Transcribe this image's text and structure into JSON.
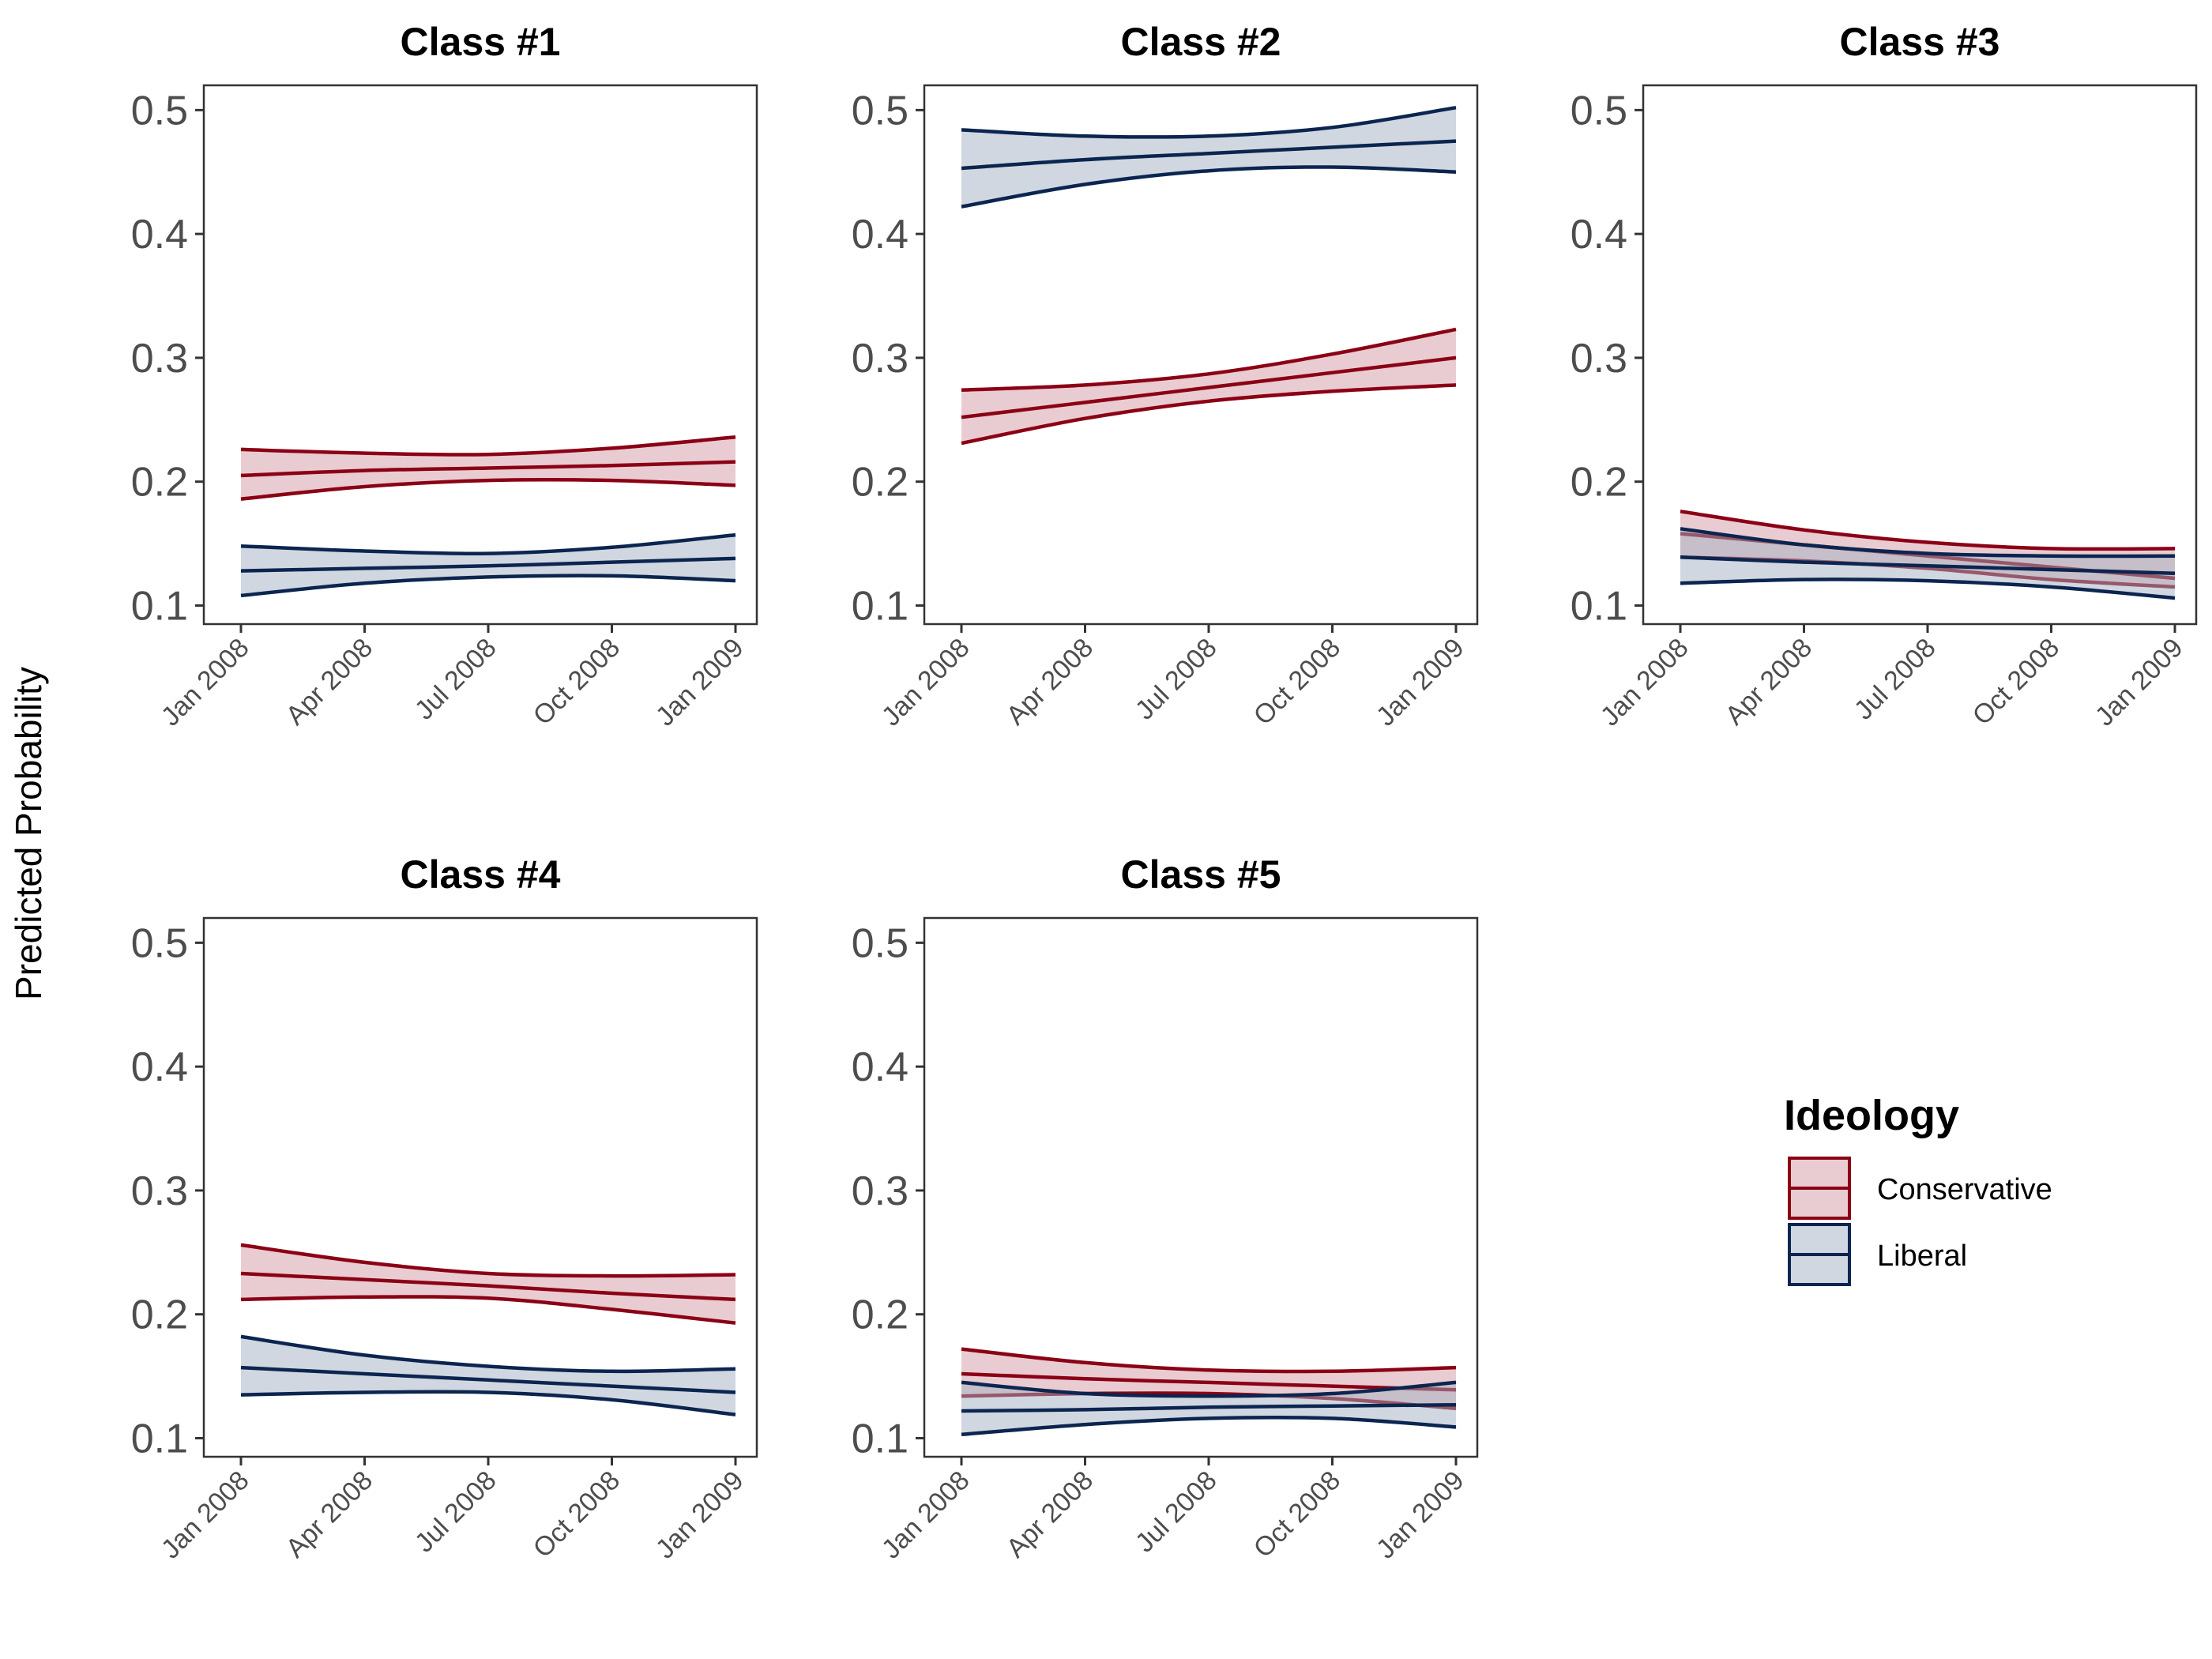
{
  "colors": {
    "Conservative": "#8b0015",
    "Liberal": "#0b2550",
    "Conservative_fill": "#d49aa3",
    "Liberal_fill": "#a3afc2"
  },
  "legend": {
    "title": "Ideology",
    "items": [
      "Conservative",
      "Liberal"
    ]
  },
  "ylabel": "Predicted Probability",
  "chart_data": [
    {
      "type": "line",
      "title": "Class #1",
      "x": [
        "2008-01",
        "2008-04",
        "2008-07",
        "2008-10",
        "2009-01"
      ],
      "xtick_labels": [
        "Jan 2008",
        "Apr 2008",
        "Jul 2008",
        "Oct 2008",
        "Jan 2009"
      ],
      "ylim": [
        0.085,
        0.52
      ],
      "yticks": [
        "0.1",
        "0.2",
        "0.3",
        "0.4",
        "0.5"
      ],
      "series": [
        {
          "name": "Conservative",
          "fit": [
            0.205,
            0.209,
            0.211,
            0.213,
            0.216
          ],
          "lower": [
            0.186,
            0.196,
            0.201,
            0.201,
            0.197
          ],
          "upper": [
            0.226,
            0.223,
            0.222,
            0.227,
            0.236
          ]
        },
        {
          "name": "Liberal",
          "fit": [
            0.128,
            0.13,
            0.132,
            0.135,
            0.138
          ],
          "lower": [
            0.108,
            0.118,
            0.123,
            0.124,
            0.12
          ],
          "upper": [
            0.148,
            0.144,
            0.142,
            0.147,
            0.157
          ]
        }
      ]
    },
    {
      "type": "line",
      "title": "Class #2",
      "x": [
        "2008-01",
        "2008-04",
        "2008-07",
        "2008-10",
        "2009-01"
      ],
      "xtick_labels": [
        "Jan 2008",
        "Apr 2008",
        "Jul 2008",
        "Oct 2008",
        "Jan 2009"
      ],
      "ylim": [
        0.085,
        0.52
      ],
      "yticks": [
        "0.1",
        "0.2",
        "0.3",
        "0.4",
        "0.5"
      ],
      "series": [
        {
          "name": "Conservative",
          "fit": [
            0.252,
            0.264,
            0.276,
            0.288,
            0.3
          ],
          "lower": [
            0.231,
            0.251,
            0.265,
            0.273,
            0.278
          ],
          "upper": [
            0.274,
            0.278,
            0.287,
            0.303,
            0.323
          ]
        },
        {
          "name": "Liberal",
          "fit": [
            0.453,
            0.46,
            0.465,
            0.47,
            0.475
          ],
          "lower": [
            0.422,
            0.44,
            0.451,
            0.454,
            0.45
          ],
          "upper": [
            0.484,
            0.479,
            0.479,
            0.486,
            0.502
          ]
        }
      ]
    },
    {
      "type": "line",
      "title": "Class #3",
      "x": [
        "2008-01",
        "2008-04",
        "2008-07",
        "2008-10",
        "2009-01"
      ],
      "xtick_labels": [
        "Jan 2008",
        "Apr 2008",
        "Jul 2008",
        "Oct 2008",
        "Jan 2009"
      ],
      "ylim": [
        0.085,
        0.52
      ],
      "yticks": [
        "0.1",
        "0.2",
        "0.3",
        "0.4",
        "0.5"
      ],
      "series": [
        {
          "name": "Conservative",
          "fit": [
            0.158,
            0.149,
            0.14,
            0.131,
            0.122
          ],
          "lower": [
            0.139,
            0.136,
            0.13,
            0.121,
            0.115
          ],
          "upper": [
            0.176,
            0.161,
            0.151,
            0.146,
            0.146
          ]
        },
        {
          "name": "Liberal",
          "fit": [
            0.139,
            0.135,
            0.132,
            0.129,
            0.126
          ],
          "lower": [
            0.118,
            0.121,
            0.12,
            0.115,
            0.106
          ],
          "upper": [
            0.162,
            0.149,
            0.142,
            0.14,
            0.14
          ]
        }
      ]
    },
    {
      "type": "line",
      "title": "Class #4",
      "x": [
        "2008-01",
        "2008-04",
        "2008-07",
        "2008-10",
        "2009-01"
      ],
      "xtick_labels": [
        "Jan 2008",
        "Apr 2008",
        "Jul 2008",
        "Oct 2008",
        "Jan 2009"
      ],
      "ylim": [
        0.085,
        0.52
      ],
      "yticks": [
        "0.1",
        "0.2",
        "0.3",
        "0.4",
        "0.5"
      ],
      "series": [
        {
          "name": "Conservative",
          "fit": [
            0.233,
            0.228,
            0.223,
            0.217,
            0.212
          ],
          "lower": [
            0.212,
            0.214,
            0.213,
            0.204,
            0.193
          ],
          "upper": [
            0.256,
            0.242,
            0.233,
            0.231,
            0.232
          ]
        },
        {
          "name": "Liberal",
          "fit": [
            0.157,
            0.152,
            0.147,
            0.142,
            0.137
          ],
          "lower": [
            0.135,
            0.137,
            0.137,
            0.131,
            0.119
          ],
          "upper": [
            0.182,
            0.167,
            0.158,
            0.154,
            0.156
          ]
        }
      ]
    },
    {
      "type": "line",
      "title": "Class #5",
      "x": [
        "2008-01",
        "2008-04",
        "2008-07",
        "2008-10",
        "2009-01"
      ],
      "xtick_labels": [
        "Jan 2008",
        "Apr 2008",
        "Jul 2008",
        "Oct 2008",
        "Jan 2009"
      ],
      "ylim": [
        0.085,
        0.52
      ],
      "yticks": [
        "0.1",
        "0.2",
        "0.3",
        "0.4",
        "0.5"
      ],
      "series": [
        {
          "name": "Conservative",
          "fit": [
            0.152,
            0.148,
            0.145,
            0.142,
            0.139
          ],
          "lower": [
            0.134,
            0.136,
            0.136,
            0.132,
            0.124
          ],
          "upper": [
            0.172,
            0.161,
            0.155,
            0.154,
            0.157
          ]
        },
        {
          "name": "Liberal",
          "fit": [
            0.122,
            0.123,
            0.125,
            0.126,
            0.127
          ],
          "lower": [
            0.103,
            0.111,
            0.116,
            0.116,
            0.109
          ],
          "upper": [
            0.145,
            0.136,
            0.134,
            0.136,
            0.145
          ]
        }
      ]
    }
  ]
}
